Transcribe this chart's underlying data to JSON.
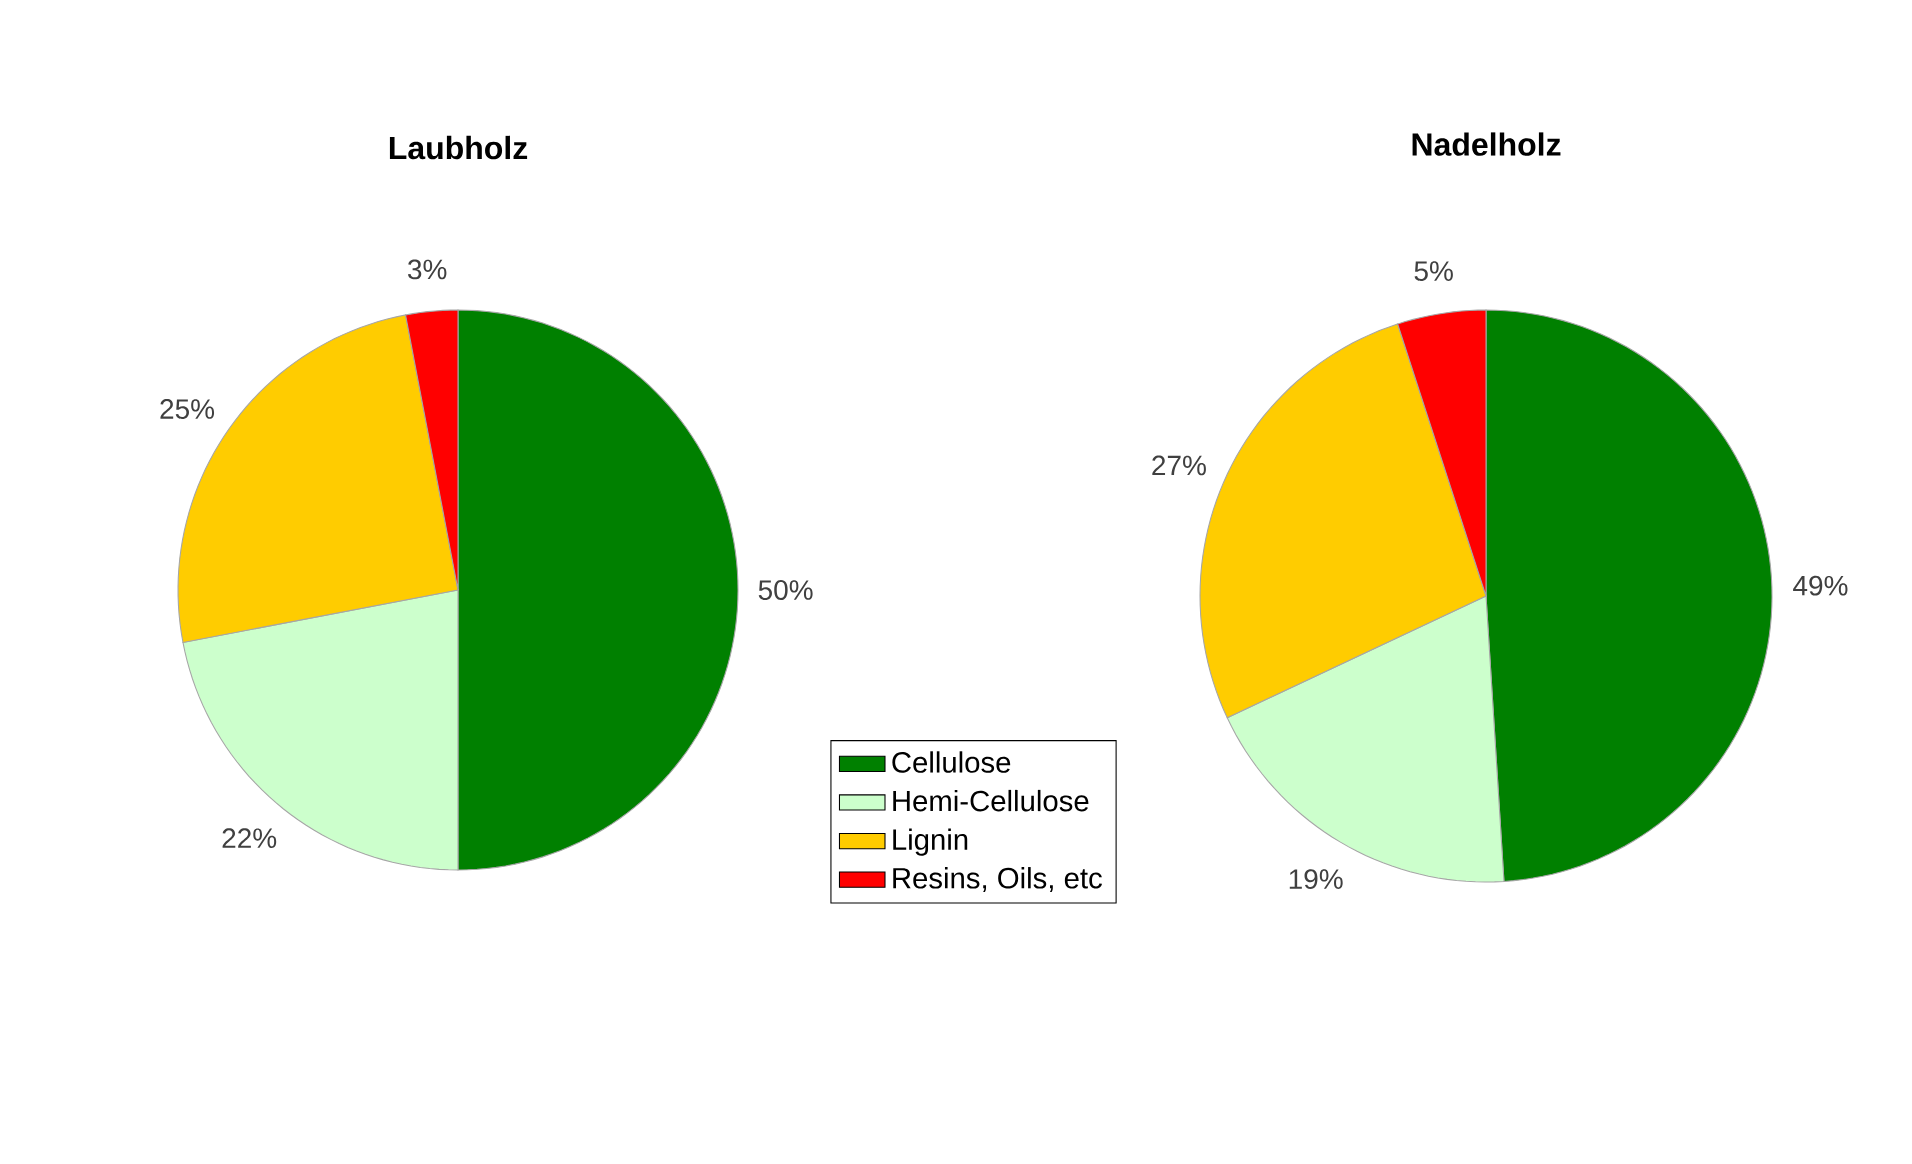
{
  "chart_data": [
    {
      "type": "pie",
      "title": "Laubholz",
      "categories": [
        "Cellulose",
        "Hemi-Cellulose",
        "Lignin",
        "Resins, Oils, etc"
      ],
      "values": [
        50,
        22,
        25,
        3
      ],
      "value_labels": [
        "50%",
        "22%",
        "25%",
        "3%"
      ],
      "colors": [
        "#008000",
        "#ccffcc",
        "#ffcc00",
        "#ff0000"
      ],
      "legend": "right"
    },
    {
      "type": "pie",
      "title": "Nadelholz",
      "categories": [
        null,
        null,
        null,
        null
      ],
      "values": [
        49,
        19,
        27,
        5
      ],
      "value_labels": [
        "49%",
        "19%",
        "27%",
        "5%"
      ],
      "colors": [
        "#008000",
        "#ccffcc",
        "#ffcc00",
        "#ff0000"
      ]
    }
  ]
}
